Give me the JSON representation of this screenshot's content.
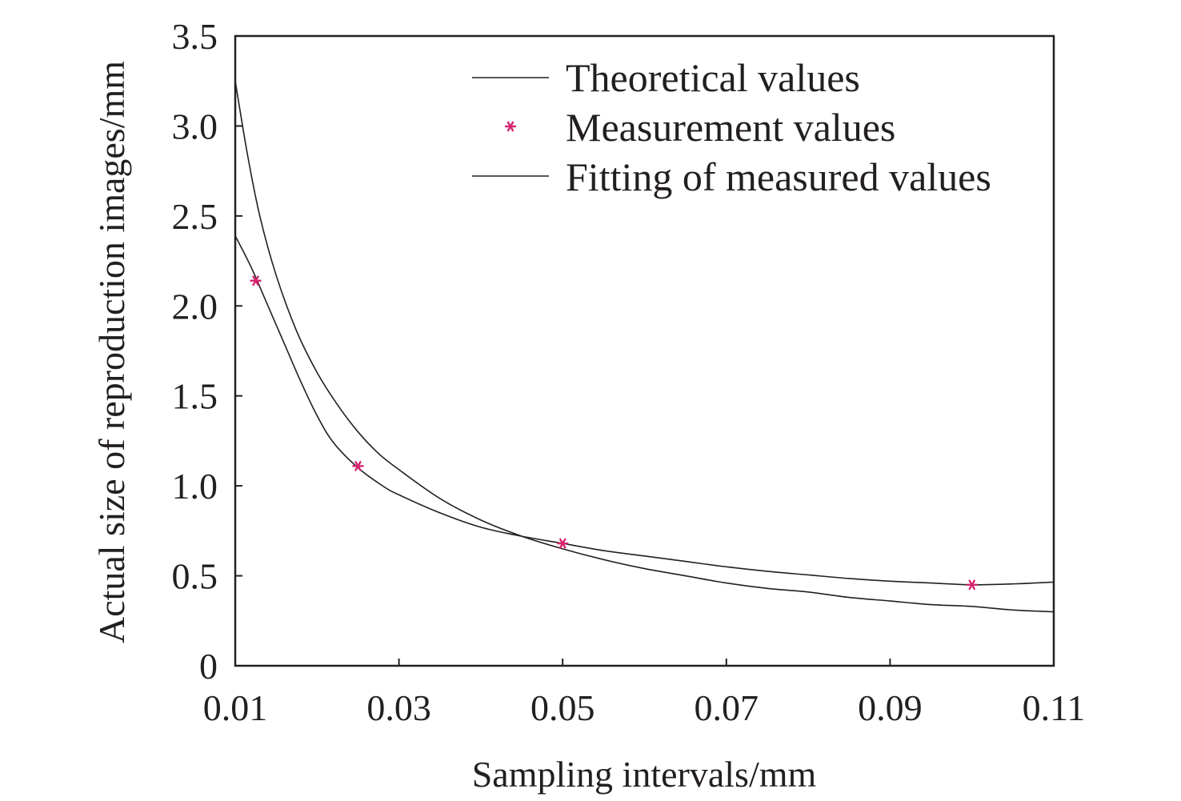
{
  "chart_data": {
    "type": "line",
    "xlabel": "Sampling intervals/mm",
    "ylabel": "Actual size of reproduction images/mm",
    "xlim": [
      0.01,
      0.11
    ],
    "ylim": [
      0,
      3.5
    ],
    "x_ticks": [
      "0.01",
      "0.03",
      "0.05",
      "0.07",
      "0.09",
      "0.11"
    ],
    "y_ticks": [
      "0",
      "0.5",
      "1.0",
      "1.5",
      "2.0",
      "2.5",
      "3.0",
      "3.5"
    ],
    "grid": false,
    "legend_position": "top-right",
    "series": [
      {
        "name": "Theoretical values",
        "kind": "line",
        "color": "#231f20",
        "x": [
          0.01,
          0.0115,
          0.013,
          0.015,
          0.0175,
          0.02,
          0.0225,
          0.025,
          0.0275,
          0.03,
          0.035,
          0.04,
          0.045,
          0.05,
          0.055,
          0.06,
          0.065,
          0.07,
          0.075,
          0.08,
          0.085,
          0.09,
          0.095,
          0.1,
          0.105,
          0.11
        ],
        "values": [
          3.25,
          2.84,
          2.5,
          2.17,
          1.86,
          1.63,
          1.45,
          1.3,
          1.18,
          1.09,
          0.93,
          0.81,
          0.72,
          0.65,
          0.59,
          0.54,
          0.5,
          0.46,
          0.43,
          0.41,
          0.38,
          0.36,
          0.34,
          0.33,
          0.31,
          0.3
        ]
      },
      {
        "name": "Measurement values",
        "kind": "scatter",
        "color": "#d6246e",
        "x": [
          0.0125,
          0.025,
          0.05,
          0.1
        ],
        "values": [
          2.14,
          1.11,
          0.68,
          0.45
        ]
      },
      {
        "name": "Fitting of measured values",
        "kind": "line",
        "color": "#231f20",
        "x": [
          0.01,
          0.012,
          0.014,
          0.016,
          0.018,
          0.02,
          0.022,
          0.025,
          0.028,
          0.03,
          0.035,
          0.04,
          0.045,
          0.05,
          0.055,
          0.06,
          0.065,
          0.07,
          0.075,
          0.08,
          0.085,
          0.09,
          0.095,
          0.1,
          0.105,
          0.11
        ],
        "values": [
          2.39,
          2.21,
          2.0,
          1.79,
          1.58,
          1.39,
          1.24,
          1.1,
          1.0,
          0.95,
          0.85,
          0.77,
          0.72,
          0.68,
          0.64,
          0.61,
          0.58,
          0.55,
          0.525,
          0.505,
          0.485,
          0.47,
          0.46,
          0.45,
          0.455,
          0.465
        ]
      }
    ]
  }
}
